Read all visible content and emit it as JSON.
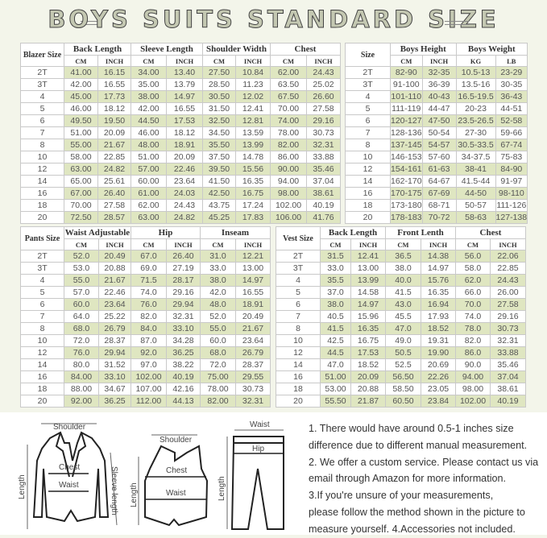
{
  "title": "BOYS SUITS STANDARD SIZE",
  "colors": {
    "background": "#f3f5ea",
    "row_highlight": "#dfe6c1",
    "border": "#c9c9c9"
  },
  "tables": {
    "blazer": {
      "size_label": "Blazer Size",
      "groups": [
        {
          "label": "Back Length",
          "units": [
            "CM",
            "INCH"
          ]
        },
        {
          "label": "Sleeve Length",
          "units": [
            "CM",
            "INCH"
          ]
        },
        {
          "label": "Shoulder Width",
          "units": [
            "CM",
            "INCH"
          ]
        },
        {
          "label": "Chest",
          "units": [
            "CM",
            "INCH"
          ]
        }
      ],
      "rows": [
        [
          "2T",
          "41.00",
          "16.15",
          "34.00",
          "13.40",
          "27.50",
          "10.84",
          "62.00",
          "24.43"
        ],
        [
          "3T",
          "42.00",
          "16.55",
          "35.00",
          "13.79",
          "28.50",
          "11.23",
          "63.50",
          "25.02"
        ],
        [
          "4",
          "45.00",
          "17.73",
          "38.00",
          "14.97",
          "30.50",
          "12.02",
          "67.50",
          "26.60"
        ],
        [
          "5",
          "46.00",
          "18.12",
          "42.00",
          "16.55",
          "31.50",
          "12.41",
          "70.00",
          "27.58"
        ],
        [
          "6",
          "49.50",
          "19.50",
          "44.50",
          "17.53",
          "32.50",
          "12.81",
          "74.00",
          "29.16"
        ],
        [
          "7",
          "51.00",
          "20.09",
          "46.00",
          "18.12",
          "34.50",
          "13.59",
          "78.00",
          "30.73"
        ],
        [
          "8",
          "55.00",
          "21.67",
          "48.00",
          "18.91",
          "35.50",
          "13.99",
          "82.00",
          "32.31"
        ],
        [
          "10",
          "58.00",
          "22.85",
          "51.00",
          "20.09",
          "37.50",
          "14.78",
          "86.00",
          "33.88"
        ],
        [
          "12",
          "63.00",
          "24.82",
          "57.00",
          "22.46",
          "39.50",
          "15.56",
          "90.00",
          "35.46"
        ],
        [
          "14",
          "65.00",
          "25.61",
          "60.00",
          "23.64",
          "41.50",
          "16.35",
          "94.00",
          "37.04"
        ],
        [
          "16",
          "67.00",
          "26.40",
          "61.00",
          "24.03",
          "42.50",
          "16.75",
          "98.00",
          "38.61"
        ],
        [
          "18",
          "70.00",
          "27.58",
          "62.00",
          "24.43",
          "43.75",
          "17.24",
          "102.00",
          "40.19"
        ],
        [
          "20",
          "72.50",
          "28.57",
          "63.00",
          "24.82",
          "45.25",
          "17.83",
          "106.00",
          "41.76"
        ]
      ]
    },
    "height_weight": {
      "size_label": "Size",
      "groups": [
        {
          "label": "Boys Height",
          "units": [
            "CM",
            "INCH"
          ]
        },
        {
          "label": "Boys Weight",
          "units": [
            "KG",
            "LB"
          ]
        }
      ],
      "rows": [
        [
          "2T",
          "82-90",
          "32-35",
          "10.5-13",
          "23-29"
        ],
        [
          "3T",
          "91-100",
          "36-39",
          "13.5-16",
          "30-35"
        ],
        [
          "4",
          "101-110",
          "40-43",
          "16.5-19.5",
          "36-43"
        ],
        [
          "5",
          "111-119",
          "44-47",
          "20-23",
          "44-51"
        ],
        [
          "6",
          "120-127",
          "47-50",
          "23.5-26.5",
          "52-58"
        ],
        [
          "7",
          "128-136",
          "50-54",
          "27-30",
          "59-66"
        ],
        [
          "8",
          "137-145",
          "54-57",
          "30.5-33.5",
          "67-74"
        ],
        [
          "10",
          "146-153",
          "57-60",
          "34-37.5",
          "75-83"
        ],
        [
          "12",
          "154-161",
          "61-63",
          "38-41",
          "84-90"
        ],
        [
          "14",
          "162-170",
          "64-67",
          "41.5-44",
          "91-97"
        ],
        [
          "16",
          "170-175",
          "67-69",
          "44-50",
          "98-110"
        ],
        [
          "18",
          "173-180",
          "68-71",
          "50-57",
          "111-126"
        ],
        [
          "20",
          "178-183",
          "70-72",
          "58-63",
          "127-138"
        ]
      ]
    },
    "pants": {
      "size_label": "Pants Size",
      "groups": [
        {
          "label": "Waist Adjustable",
          "units": [
            "CM",
            "INCH"
          ]
        },
        {
          "label": "Hip",
          "units": [
            "CM",
            "INCH"
          ]
        },
        {
          "label": "Inseam",
          "units": [
            "CM",
            "INCH"
          ]
        }
      ],
      "rows": [
        [
          "2T",
          "52.0",
          "20.49",
          "67.0",
          "26.40",
          "31.0",
          "12.21"
        ],
        [
          "3T",
          "53.0",
          "20.88",
          "69.0",
          "27.19",
          "33.0",
          "13.00"
        ],
        [
          "4",
          "55.0",
          "21.67",
          "71.5",
          "28.17",
          "38.0",
          "14.97"
        ],
        [
          "5",
          "57.0",
          "22.46",
          "74.0",
          "29.16",
          "42.0",
          "16.55"
        ],
        [
          "6",
          "60.0",
          "23.64",
          "76.0",
          "29.94",
          "48.0",
          "18.91"
        ],
        [
          "7",
          "64.0",
          "25.22",
          "82.0",
          "32.31",
          "52.0",
          "20.49"
        ],
        [
          "8",
          "68.0",
          "26.79",
          "84.0",
          "33.10",
          "55.0",
          "21.67"
        ],
        [
          "10",
          "72.0",
          "28.37",
          "87.0",
          "34.28",
          "60.0",
          "23.64"
        ],
        [
          "12",
          "76.0",
          "29.94",
          "92.0",
          "36.25",
          "68.0",
          "26.79"
        ],
        [
          "14",
          "80.0",
          "31.52",
          "97.0",
          "38.22",
          "72.0",
          "28.37"
        ],
        [
          "16",
          "84.00",
          "33.10",
          "102.00",
          "40.19",
          "75.00",
          "29.55"
        ],
        [
          "18",
          "88.00",
          "34.67",
          "107.00",
          "42.16",
          "78.00",
          "30.73"
        ],
        [
          "20",
          "92.00",
          "36.25",
          "112.00",
          "44.13",
          "82.00",
          "32.31"
        ]
      ]
    },
    "vest": {
      "size_label": "Vest Size",
      "groups": [
        {
          "label": "Back Length",
          "units": [
            "CM",
            "INCH"
          ]
        },
        {
          "label": "Front Lenth",
          "units": [
            "CM",
            "INCH"
          ]
        },
        {
          "label": "Chest",
          "units": [
            "CM",
            "INCH"
          ]
        }
      ],
      "rows": [
        [
          "2T",
          "31.5",
          "12.41",
          "36.5",
          "14.38",
          "56.0",
          "22.06"
        ],
        [
          "3T",
          "33.0",
          "13.00",
          "38.0",
          "14.97",
          "58.0",
          "22.85"
        ],
        [
          "4",
          "35.5",
          "13.99",
          "40.0",
          "15.76",
          "62.0",
          "24.43"
        ],
        [
          "5",
          "37.0",
          "14.58",
          "41.5",
          "16.35",
          "66.0",
          "26.00"
        ],
        [
          "6",
          "38.0",
          "14.97",
          "43.0",
          "16.94",
          "70.0",
          "27.58"
        ],
        [
          "7",
          "40.5",
          "15.96",
          "45.5",
          "17.93",
          "74.0",
          "29.16"
        ],
        [
          "8",
          "41.5",
          "16.35",
          "47.0",
          "18.52",
          "78.0",
          "30.73"
        ],
        [
          "10",
          "42.5",
          "16.75",
          "49.0",
          "19.31",
          "82.0",
          "32.31"
        ],
        [
          "12",
          "44.5",
          "17.53",
          "50.5",
          "19.90",
          "86.0",
          "33.88"
        ],
        [
          "14",
          "47.0",
          "18.52",
          "52.5",
          "20.69",
          "90.0",
          "35.46"
        ],
        [
          "16",
          "51.00",
          "20.09",
          "56.50",
          "22.26",
          "94.00",
          "37.04"
        ],
        [
          "18",
          "53.00",
          "20.88",
          "58.50",
          "23.05",
          "98.00",
          "38.61"
        ],
        [
          "20",
          "55.50",
          "21.87",
          "60.50",
          "23.84",
          "102.00",
          "40.19"
        ]
      ]
    }
  },
  "diagrams": {
    "blazer": {
      "shoulder": "Shoulder",
      "chest": "Chest",
      "waist": "Waist",
      "length": "Length",
      "sleeve": "Sleeve length"
    },
    "vest": {
      "shoulder": "Shoulder",
      "chest": "Chest",
      "waist": "Waist",
      "length": "Length"
    },
    "pants": {
      "waist": "Waist",
      "hip": "Hip",
      "length": "Length"
    }
  },
  "notes": [
    "1. There would have around 0.5-1 inches size",
    "difference due to different manual measurement.",
    "2. We offer a custom service. Please contact us via",
    "email through Amazon for more information.",
    "3.If you're unsure of your measurements,",
    "please follow the method shown in the picture to",
    "measure yourself. 4.Accessories not included."
  ]
}
